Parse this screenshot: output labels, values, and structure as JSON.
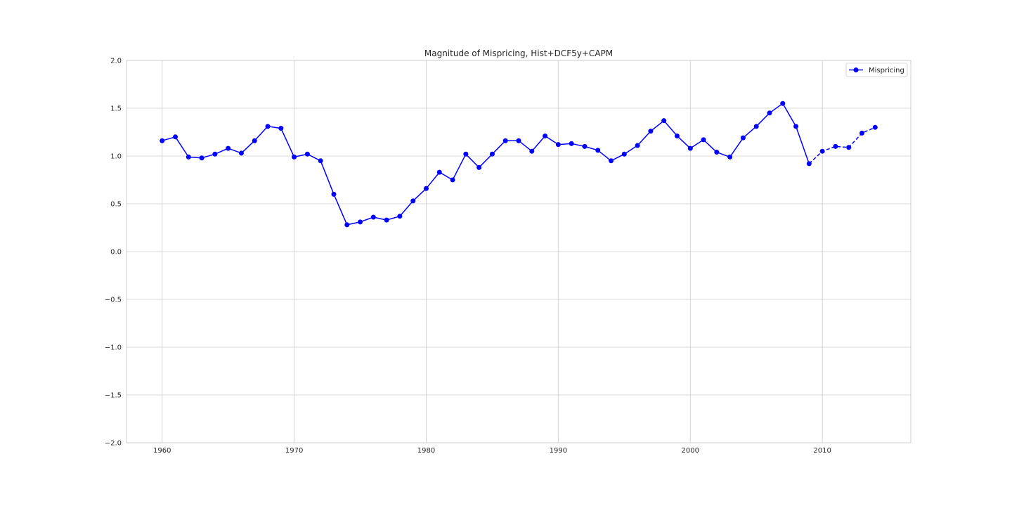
{
  "chart_data": {
    "type": "line",
    "title": "Magnitude of Mispricing, Hist+DCF5y+CAPM",
    "xlabel": "",
    "ylabel": "",
    "xlim": [
      1957.3,
      2016.7
    ],
    "ylim": [
      -2.0,
      2.0
    ],
    "xticks": [
      1960,
      1970,
      1980,
      1990,
      2000,
      2010
    ],
    "yticks": [
      2.0,
      1.5,
      1.0,
      0.5,
      0.0,
      -0.5,
      -1.0,
      -1.5,
      -2.0
    ],
    "ytick_labels": [
      "2.0",
      "1.5",
      "1.0",
      "0.5",
      "0.0",
      "−0.5",
      "−1.0",
      "−1.5",
      "−2.0"
    ],
    "grid": true,
    "legend": {
      "position": "top-right",
      "entries": [
        "Mispricing"
      ]
    },
    "series": [
      {
        "name": "Mispricing",
        "color": "#0000ff",
        "marker": "circle",
        "solid_until": 2009,
        "dashed_from": 2009,
        "x": [
          1960,
          1961,
          1962,
          1963,
          1964,
          1965,
          1966,
          1967,
          1968,
          1969,
          1970,
          1971,
          1972,
          1973,
          1974,
          1975,
          1976,
          1977,
          1978,
          1979,
          1980,
          1981,
          1982,
          1983,
          1984,
          1985,
          1986,
          1987,
          1988,
          1989,
          1990,
          1991,
          1992,
          1993,
          1994,
          1995,
          1996,
          1997,
          1998,
          1999,
          2000,
          2001,
          2002,
          2003,
          2004,
          2005,
          2006,
          2007,
          2008,
          2009,
          2010,
          2011,
          2012,
          2013,
          2014
        ],
        "y": [
          1.16,
          1.2,
          0.99,
          0.98,
          1.02,
          1.08,
          1.03,
          1.16,
          1.31,
          1.29,
          0.99,
          1.02,
          0.95,
          0.6,
          0.28,
          0.31,
          0.36,
          0.33,
          0.37,
          0.53,
          0.66,
          0.83,
          0.75,
          1.02,
          0.88,
          1.02,
          1.16,
          1.16,
          1.05,
          1.21,
          1.12,
          1.13,
          1.1,
          1.06,
          0.95,
          1.02,
          1.11,
          1.26,
          1.37,
          1.21,
          1.08,
          1.17,
          1.04,
          0.99,
          1.19,
          1.31,
          1.45,
          1.55,
          1.31,
          0.92,
          1.05,
          1.1,
          1.09,
          1.24,
          1.3
        ]
      }
    ]
  }
}
